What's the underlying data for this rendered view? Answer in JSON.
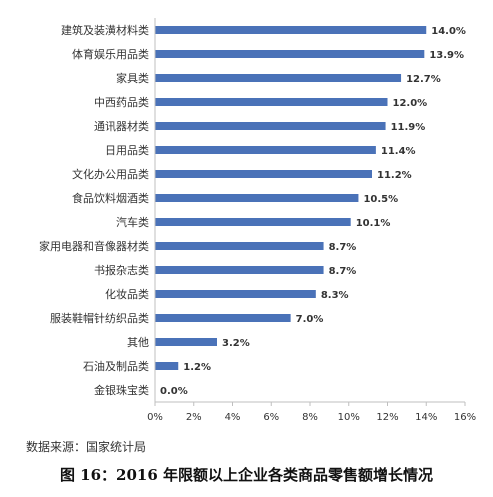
{
  "chart_data": {
    "type": "bar",
    "orientation": "horizontal",
    "categories": [
      "建筑及装潢材料类",
      "体育娱乐用品类",
      "家具类",
      "中西药品类",
      "通讯器材类",
      "日用品类",
      "文化办公用品类",
      "食品饮料烟酒类",
      "汽车类",
      "家用电器和音像器材类",
      "书报杂志类",
      "化妆品类",
      "服装鞋帽针纺织品类",
      "其他",
      "石油及制品类",
      "金银珠宝类"
    ],
    "values": [
      14.0,
      13.9,
      12.7,
      12.0,
      11.9,
      11.4,
      11.2,
      10.5,
      10.1,
      8.7,
      8.7,
      8.3,
      7.0,
      3.2,
      1.2,
      0.0
    ],
    "value_labels": [
      "14.0%",
      "13.9%",
      "12.7%",
      "12.0%",
      "11.9%",
      "11.4%",
      "11.2%",
      "10.5%",
      "10.1%",
      "8.7%",
      "8.7%",
      "8.3%",
      "7.0%",
      "3.2%",
      "1.2%",
      "0.0%"
    ],
    "x_ticks": [
      "0%",
      "2%",
      "4%",
      "6%",
      "8%",
      "10%",
      "12%",
      "14%",
      "16%"
    ],
    "xlim": [
      0,
      16
    ],
    "bar_color": "#4a72b8",
    "grid": false,
    "legend": "none"
  },
  "source_text": "数据来源：国家统计局",
  "caption_text": "图 16：2016 年限额以上企业各类商品零售额增长情况"
}
